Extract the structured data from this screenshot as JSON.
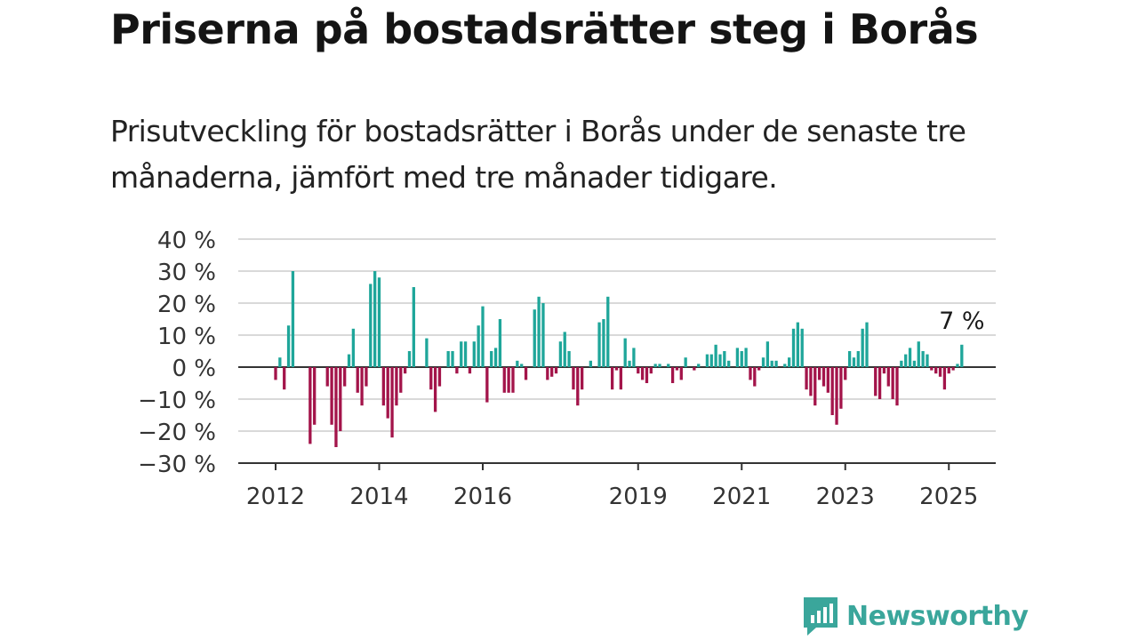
{
  "title": "Priserna på bostadsrätter steg i Borås",
  "subtitle": "Prisutveckling för bostadsrätter i Borås under de senaste tre månaderna, jämfört med tre månader tidigare.",
  "brand": {
    "name": "Newsworthy",
    "color": "#3aa69b"
  },
  "chart_data": {
    "type": "bar",
    "ylim": [
      -30,
      40
    ],
    "yticks": [
      40,
      30,
      20,
      10,
      0,
      -10,
      -20,
      -30
    ],
    "ytick_labels": [
      "40 %",
      "30 %",
      "20 %",
      "10 %",
      "0 %",
      "−10 %",
      "−20 %",
      "−30 %"
    ],
    "xticks": [
      2012,
      2014,
      2016,
      2019,
      2021,
      2023,
      2025
    ],
    "xtick_labels": [
      "2012",
      "2014",
      "2016",
      "2019",
      "2021",
      "2023",
      "2025"
    ],
    "x_start": "2012-01",
    "annotation": {
      "label": "7 %",
      "target": "last"
    },
    "positive_color": "#1fa69a",
    "negative_color": "#a3144a",
    "grid": true,
    "values": [
      -4,
      3,
      -7,
      13,
      30,
      0,
      0,
      0,
      -24,
      -18,
      0,
      0,
      -6,
      -18,
      -25,
      -20,
      -6,
      4,
      12,
      -8,
      -12,
      -6,
      26,
      30,
      28,
      -12,
      -16,
      -22,
      -12,
      -8,
      -2,
      5,
      25,
      0,
      0,
      9,
      -7,
      -14,
      -6,
      0,
      5,
      5,
      -2,
      8,
      8,
      -2,
      8,
      13,
      19,
      -11,
      5,
      6,
      15,
      -8,
      -8,
      -8,
      2,
      1,
      -4,
      0,
      18,
      22,
      20,
      -4,
      -3,
      -2,
      8,
      11,
      5,
      -7,
      -12,
      -7,
      0,
      2,
      0,
      14,
      15,
      22,
      -7,
      -1,
      -7,
      9,
      2,
      6,
      -2,
      -4,
      -5,
      -2,
      1,
      1,
      0,
      1,
      -5,
      -1,
      -4,
      3,
      0,
      -1,
      1,
      0,
      4,
      4,
      7,
      4,
      5,
      2,
      0,
      6,
      5,
      6,
      -4,
      -6,
      -1,
      3,
      8,
      2,
      2,
      0,
      1,
      3,
      12,
      14,
      12,
      -7,
      -9,
      -12,
      -4,
      -6,
      -8,
      -15,
      -18,
      -13,
      -4,
      5,
      3,
      5,
      12,
      14,
      0,
      -9,
      -10,
      -2,
      -6,
      -10,
      -12,
      2,
      4,
      6,
      2,
      8,
      5,
      4,
      -1,
      -2,
      -3,
      -7,
      -2,
      -1,
      1,
      7
    ]
  }
}
